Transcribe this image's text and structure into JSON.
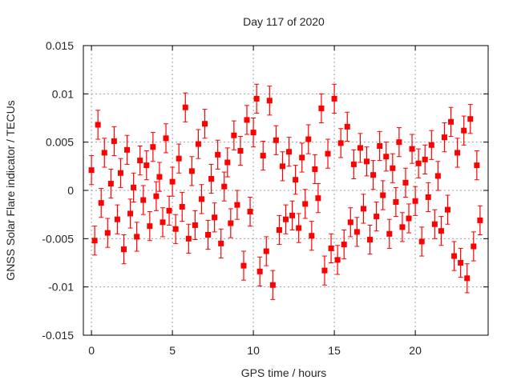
{
  "chart_data": {
    "type": "scatter",
    "title": "Day 117 of 2020",
    "xlabel": "GPS time / hours",
    "ylabel": "GNSS Solar Flare indicator / TECUs",
    "xlim": [
      -0.5,
      24.5
    ],
    "ylim": [
      -0.015,
      0.015
    ],
    "xticks": [
      0,
      5,
      10,
      15,
      20
    ],
    "xtick_labels": [
      "0",
      "5",
      "10",
      "15",
      "20"
    ],
    "yticks": [
      -0.015,
      -0.01,
      -0.005,
      0,
      0.005,
      0.01,
      0.015
    ],
    "ytick_labels": [
      "-0.015",
      "-0.01",
      "-0.005",
      "0",
      "0.005",
      "0.01",
      "0.015"
    ],
    "grid": true,
    "color": "#ff0000",
    "series": [
      {
        "name": "indicator",
        "x_start": 0,
        "x_step": 0.2,
        "yerr": 0.0015,
        "values": [
          0.0021,
          -0.0052,
          0.0068,
          -0.0013,
          0.0039,
          -0.0044,
          0.0007,
          0.0051,
          -0.003,
          0.0018,
          -0.0061,
          0.0042,
          -0.0024,
          0.0003,
          -0.0048,
          0.0031,
          -0.001,
          0.0026,
          -0.0037,
          0.0045,
          -0.0006,
          0.0014,
          -0.0033,
          0.0054,
          -0.0021,
          0.0009,
          -0.004,
          0.0033,
          -0.0017,
          0.0086,
          -0.005,
          0.002,
          -0.0036,
          0.0048,
          -0.0009,
          0.0069,
          -0.0046,
          0.0012,
          -0.0028,
          0.0037,
          -0.0055,
          0.0004,
          0.0029,
          -0.0034,
          0.0057,
          -0.0015,
          0.0041,
          -0.0078,
          0.0073,
          -0.0022,
          0.006,
          0.0095,
          -0.0084,
          0.0036,
          -0.0063,
          0.0093,
          -0.0098,
          0.0052,
          -0.0041,
          0.0025,
          -0.003,
          0.004,
          -0.0026,
          0.0011,
          -0.0039,
          0.0034,
          -0.0014,
          0.0053,
          -0.0047,
          0.0022,
          -0.0008,
          0.0085,
          -0.0083,
          0.0038,
          -0.006,
          0.0095,
          -0.0072,
          0.0049,
          -0.0056,
          0.0066,
          -0.0033,
          0.0027,
          -0.0043,
          0.0044,
          -0.0019,
          0.003,
          -0.0051,
          0.0016,
          -0.0027,
          0.0046,
          -0.0005,
          0.0035,
          -0.0045,
          0.0023,
          -0.0012,
          0.005,
          -0.0038,
          0.0008,
          -0.0029,
          0.0043,
          -0.0011,
          0.0028,
          -0.0053,
          0.0032,
          -0.0007,
          0.0047,
          -0.0035,
          0.0015,
          -0.0042,
          0.0055,
          -0.002,
          0.0071,
          -0.0068,
          0.0039,
          -0.0075,
          0.0062,
          -0.0091,
          0.0074,
          -0.0058,
          0.0026,
          -0.0031
        ]
      }
    ]
  }
}
